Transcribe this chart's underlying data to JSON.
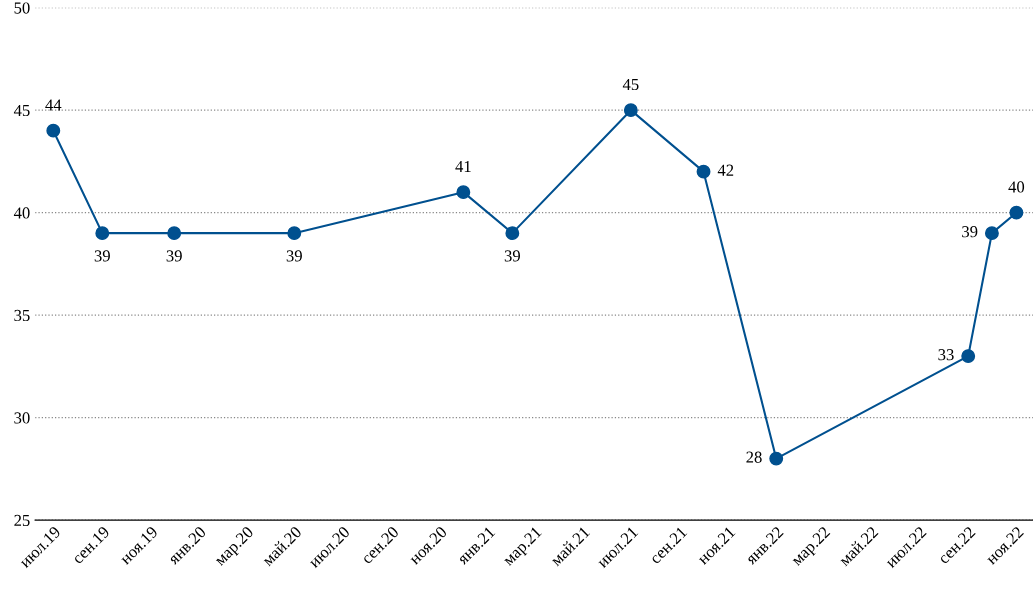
{
  "chart_data": {
    "type": "line",
    "x": [
      "2019-07",
      "2019-09",
      "2019-12",
      "2020-05",
      "2020-12",
      "2021-02",
      "2021-07",
      "2021-10",
      "2022-01",
      "2022-09",
      "2022-10",
      "2022-11"
    ],
    "series": [
      {
        "color": "#00508f",
        "values": [
          44,
          39,
          39,
          39,
          41,
          39,
          45,
          42,
          28,
          33,
          39,
          40
        ]
      }
    ],
    "xlim": [
      "2019-06-08",
      "2022-11-22"
    ],
    "xticks": [
      {
        "value": "2019-07",
        "label": "июл.19"
      },
      {
        "value": "2019-09",
        "label": "сен.19"
      },
      {
        "value": "2019-11",
        "label": "ноя.19"
      },
      {
        "value": "2020-01",
        "label": "янв.20"
      },
      {
        "value": "2020-03",
        "label": "мар.20"
      },
      {
        "value": "2020-05",
        "label": "май.20"
      },
      {
        "value": "2020-07",
        "label": "июл.20"
      },
      {
        "value": "2020-09",
        "label": "сен.20"
      },
      {
        "value": "2020-11",
        "label": "ноя.20"
      },
      {
        "value": "2021-01",
        "label": "янв.21"
      },
      {
        "value": "2021-03",
        "label": "мар.21"
      },
      {
        "value": "2021-05",
        "label": "май.21"
      },
      {
        "value": "2021-07",
        "label": "июл.21"
      },
      {
        "value": "2021-09",
        "label": "сен.21"
      },
      {
        "value": "2021-11",
        "label": "ноя.21"
      },
      {
        "value": "2022-01",
        "label": "янв.22"
      },
      {
        "value": "2022-03",
        "label": "мар.22"
      },
      {
        "value": "2022-05",
        "label": "май.22"
      },
      {
        "value": "2022-07",
        "label": "июл.22"
      },
      {
        "value": "2022-09",
        "label": "сен.22"
      },
      {
        "value": "2022-11",
        "label": "ноя.22"
      }
    ],
    "ylim": [
      25,
      50
    ],
    "yticks": [
      25,
      30,
      35,
      40,
      45,
      50
    ],
    "grid": "y",
    "marker": "circle",
    "line_style": "solid",
    "data_labels": true
  }
}
